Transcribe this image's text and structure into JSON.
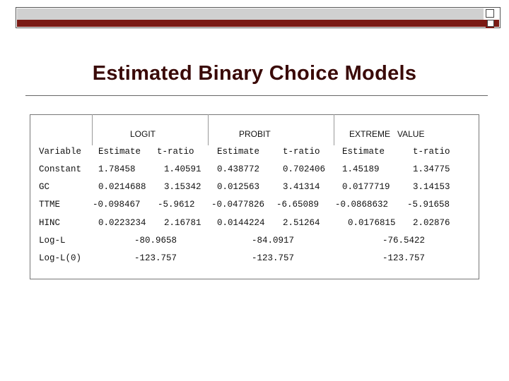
{
  "slide": {
    "title": "Estimated Binary Choice Models"
  },
  "table": {
    "group_headers": [
      "LOGIT",
      "PROBIT",
      "EXTREME   VALUE"
    ],
    "column_headers": [
      "Variable",
      "Estimate",
      "t-ratio",
      "Estimate",
      "t-ratio",
      "Estimate",
      "t-ratio"
    ],
    "rows": [
      {
        "variable": "Constant",
        "logit_est": "1.78458",
        "logit_t": "1.40591",
        "probit_est": "0.438772",
        "probit_t": "0.702406",
        "ev_est": "1.45189",
        "ev_t": "1.34775"
      },
      {
        "variable": "GC",
        "logit_est": "0.0214688",
        "logit_t": "3.15342",
        "probit_est": "0.012563",
        "probit_t": "3.41314",
        "ev_est": "0.0177719",
        "ev_t": "3.14153"
      },
      {
        "variable": "TTME",
        "logit_est": "-0.098467",
        "logit_t": "-5.9612",
        "probit_est": "-0.0477826",
        "probit_t": "-6.65089",
        "ev_est": "-0.0868632",
        "ev_t": "-5.91658"
      },
      {
        "variable": "HINC",
        "logit_est": "0.0223234",
        "logit_t": "2.16781",
        "probit_est": "0.0144224",
        "probit_t": "2.51264",
        "ev_est": "0.0176815",
        "ev_t": "2.02876"
      }
    ],
    "summary_rows": [
      {
        "label": "Log-L",
        "logit": "-80.9658",
        "probit": "-84.0917",
        "ev": "-76.5422"
      },
      {
        "label": "Log-L(0)",
        "logit": "-123.757",
        "probit": "-123.757",
        "ev": "-123.757"
      }
    ]
  }
}
